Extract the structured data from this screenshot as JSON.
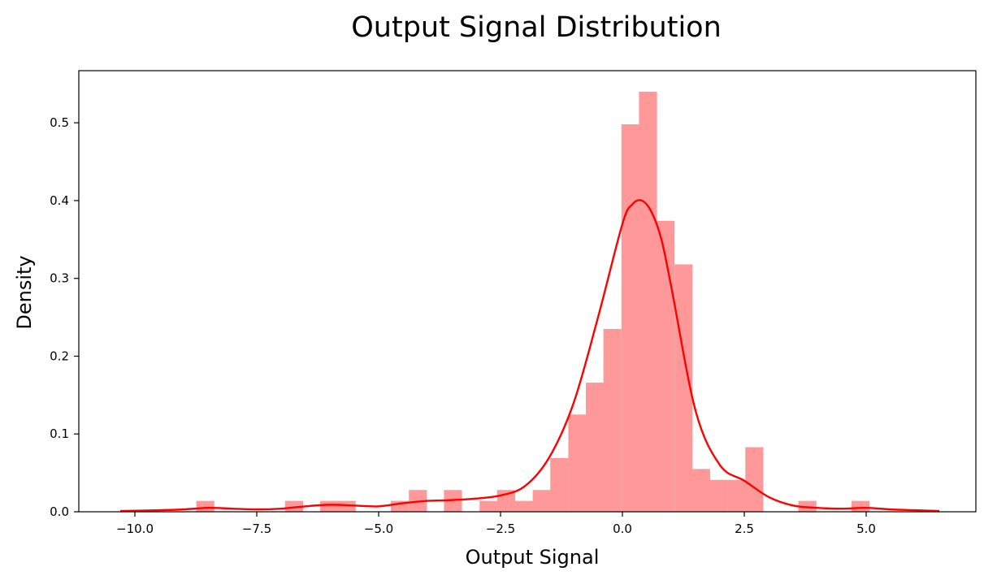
{
  "chart_data": {
    "type": "histogram",
    "title": "Output Signal Distribution",
    "xlabel": "Output Signal",
    "ylabel": "Density",
    "xlim": [
      -11.15,
      7.25
    ],
    "ylim": [
      0,
      0.567
    ],
    "xticks": [
      -10.0,
      -7.5,
      -5.0,
      -2.5,
      0.0,
      2.5,
      5.0
    ],
    "xtick_labels": [
      "−10.0",
      "−7.5",
      "−5.0",
      "−2.5",
      "0.0",
      "2.5",
      "5.0"
    ],
    "yticks": [
      0.0,
      0.1,
      0.2,
      0.3,
      0.4,
      0.5
    ],
    "ytick_labels": [
      "0.0",
      "0.1",
      "0.2",
      "0.3",
      "0.4",
      "0.5"
    ],
    "grid": false,
    "bin_width": 0.363,
    "bars": [
      {
        "x0": -8.74,
        "density": 0.014
      },
      {
        "x0": -6.92,
        "density": 0.014
      },
      {
        "x0": -6.2,
        "density": 0.014
      },
      {
        "x0": -5.84,
        "density": 0.014
      },
      {
        "x0": -4.75,
        "density": 0.014
      },
      {
        "x0": -4.38,
        "density": 0.028
      },
      {
        "x0": -3.66,
        "density": 0.028
      },
      {
        "x0": -2.93,
        "density": 0.014
      },
      {
        "x0": -2.57,
        "density": 0.028
      },
      {
        "x0": -2.2,
        "density": 0.014
      },
      {
        "x0": -1.84,
        "density": 0.028
      },
      {
        "x0": -1.48,
        "density": 0.069
      },
      {
        "x0": -1.11,
        "density": 0.125
      },
      {
        "x0": -0.75,
        "density": 0.166
      },
      {
        "x0": -0.39,
        "density": 0.235
      },
      {
        "x0": -0.02,
        "density": 0.498
      },
      {
        "x0": 0.34,
        "density": 0.54
      },
      {
        "x0": 0.7,
        "density": 0.374
      },
      {
        "x0": 1.07,
        "density": 0.318
      },
      {
        "x0": 1.43,
        "density": 0.055
      },
      {
        "x0": 1.79,
        "density": 0.041
      },
      {
        "x0": 2.16,
        "density": 0.041
      },
      {
        "x0": 2.52,
        "density": 0.083
      },
      {
        "x0": 3.61,
        "density": 0.014
      },
      {
        "x0": 4.7,
        "density": 0.014
      }
    ],
    "kde": {
      "x": [
        -10.3,
        -9.5,
        -9.0,
        -8.5,
        -8.0,
        -7.5,
        -7.0,
        -6.5,
        -6.0,
        -5.5,
        -5.0,
        -4.5,
        -4.0,
        -3.5,
        -3.0,
        -2.5,
        -2.0,
        -1.5,
        -1.0,
        -0.5,
        0.0,
        0.2,
        0.4,
        0.6,
        0.8,
        1.0,
        1.5,
        2.0,
        2.5,
        3.0,
        3.5,
        4.0,
        4.5,
        5.0,
        5.5,
        6.0,
        6.5
      ],
      "y": [
        0.001,
        0.002,
        0.003,
        0.005,
        0.004,
        0.003,
        0.004,
        0.007,
        0.009,
        0.008,
        0.007,
        0.011,
        0.014,
        0.015,
        0.017,
        0.021,
        0.033,
        0.07,
        0.14,
        0.25,
        0.37,
        0.395,
        0.4,
        0.385,
        0.35,
        0.29,
        0.13,
        0.06,
        0.04,
        0.019,
        0.008,
        0.005,
        0.004,
        0.005,
        0.003,
        0.002,
        0.001
      ]
    },
    "bar_color": "#ff9999",
    "line_color": "#ff0000"
  }
}
